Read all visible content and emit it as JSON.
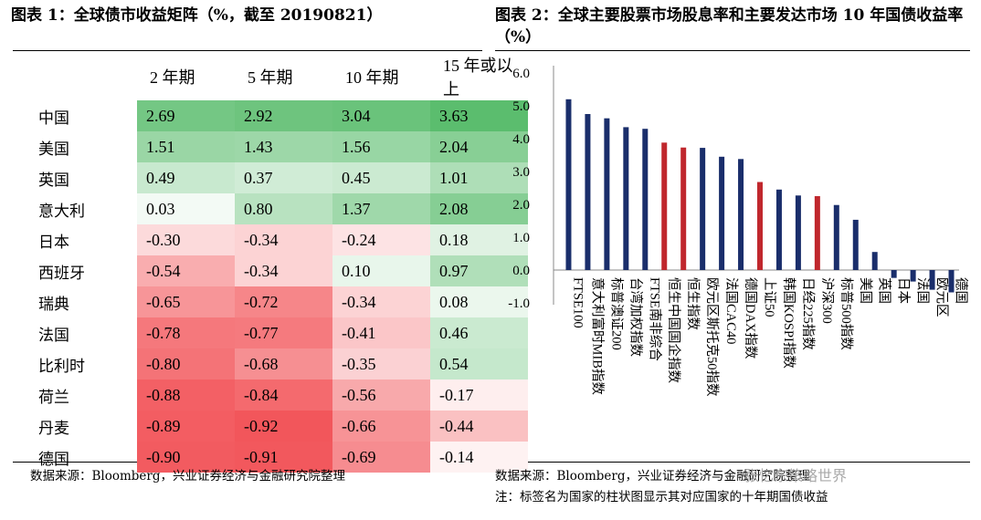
{
  "left_panel": {
    "title": "图表 1：全球债市收益矩阵（%，截至 20190821）",
    "columns": [
      "2 年期",
      "5 年期",
      "10 年期",
      "15 年或以上"
    ],
    "rows": [
      {
        "country": "中国",
        "values": [
          2.69,
          2.92,
          3.04,
          3.63
        ]
      },
      {
        "country": "美国",
        "values": [
          1.51,
          1.43,
          1.56,
          2.04
        ]
      },
      {
        "country": "英国",
        "values": [
          0.49,
          0.37,
          0.45,
          1.01
        ]
      },
      {
        "country": "意大利",
        "values": [
          0.03,
          0.8,
          1.37,
          2.08
        ]
      },
      {
        "country": "日本",
        "values": [
          -0.3,
          -0.34,
          -0.24,
          0.18
        ]
      },
      {
        "country": "西班牙",
        "values": [
          -0.54,
          -0.34,
          0.1,
          0.97
        ]
      },
      {
        "country": "瑞典",
        "values": [
          -0.65,
          -0.72,
          -0.34,
          0.08
        ]
      },
      {
        "country": "法国",
        "values": [
          -0.78,
          -0.77,
          -0.41,
          0.46
        ]
      },
      {
        "country": "比利时",
        "values": [
          -0.8,
          -0.68,
          -0.35,
          0.54
        ]
      },
      {
        "country": "荷兰",
        "values": [
          -0.88,
          -0.84,
          -0.56,
          -0.17
        ]
      },
      {
        "country": "丹麦",
        "values": [
          -0.89,
          -0.92,
          -0.66,
          -0.44
        ]
      },
      {
        "country": "德国",
        "values": [
          -0.9,
          -0.91,
          -0.69,
          -0.14
        ]
      }
    ],
    "source": "数据来源：Bloomberg，兴业证券经济与金融研究院整理",
    "colors": {
      "positive": "#5bbd6e",
      "negative": "#f2565b",
      "neutral": "#ffffff"
    }
  },
  "right_panel": {
    "title": "图表 2：全球主要股票市场股息率和主要发达市场 10 年国债收益率（%）",
    "source": "数据来源：Bloomberg，兴业证券经济与金融研究院整理",
    "note": "注：标签名为国家的柱状图显示其对应国家的十年期国债收益",
    "watermark": "张忆东策略世界"
  },
  "chart_data": {
    "type": "bar",
    "categories": [
      "FTSE100",
      "意大利富时MIB指数",
      "标普澳证200",
      "台湾加权指数",
      "FTSE南非综合",
      "恒生中国国企指数",
      "恒生指数",
      "欧元区斯托克50指数",
      "法国CAC40",
      "德国DAX指数",
      "上证50",
      "韩国KOSPI指数",
      "日经225指数",
      "沪深300",
      "标普500指数",
      "美国",
      "英国",
      "日本",
      "法国",
      "欧元区",
      "德国"
    ],
    "values": [
      5.2,
      4.75,
      4.62,
      4.35,
      4.3,
      3.88,
      3.73,
      3.72,
      3.45,
      3.38,
      2.68,
      2.45,
      2.27,
      2.25,
      1.98,
      1.53,
      0.55,
      -0.24,
      -0.35,
      -0.6,
      -0.68
    ],
    "bar_colors": [
      "#1a2e6b",
      "#1a2e6b",
      "#1a2e6b",
      "#1a2e6b",
      "#1a2e6b",
      "#c0272d",
      "#c0272d",
      "#1a2e6b",
      "#1a2e6b",
      "#1a2e6b",
      "#c0272d",
      "#1a2e6b",
      "#1a2e6b",
      "#c0272d",
      "#1a2e6b",
      "#1a2e6b",
      "#1a2e6b",
      "#1a2e6b",
      "#1a2e6b",
      "#1a2e6b",
      "#1a2e6b"
    ],
    "yticks": [
      "6.0",
      "5.0",
      "4.0",
      "3.0",
      "2.0",
      "1.0",
      "0.0",
      "-1.0"
    ],
    "ylim": [
      -1.0,
      6.0
    ],
    "grid": false,
    "legend": "none"
  }
}
